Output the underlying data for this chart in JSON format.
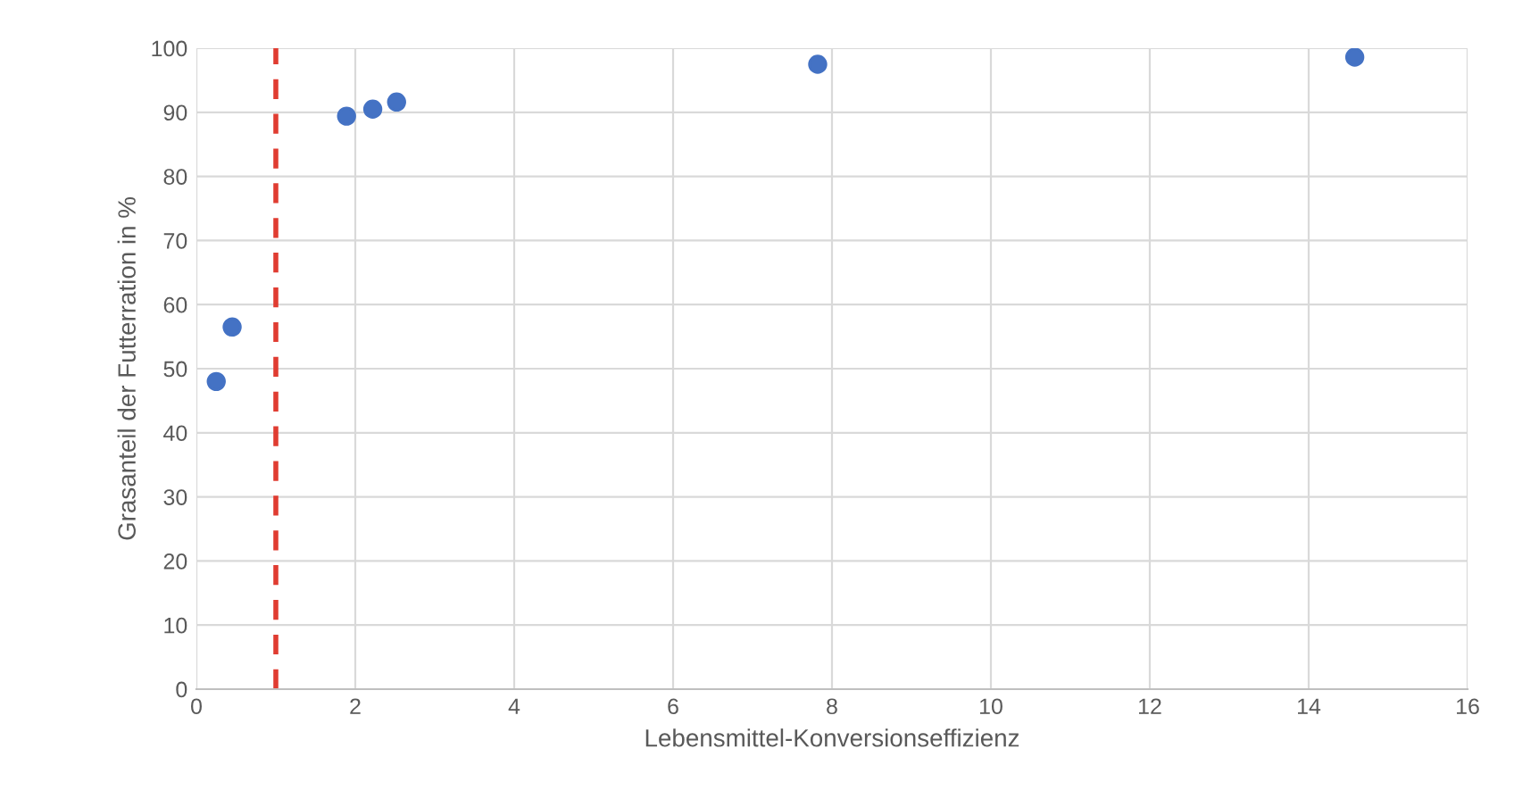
{
  "chart_data": {
    "type": "scatter",
    "xlabel": "Lebensmittel-Konversionseffizienz",
    "ylabel": "Grasanteil der Futterration in %",
    "x": [
      0.25,
      0.45,
      1.89,
      2.22,
      2.52,
      7.82,
      14.58
    ],
    "series": [
      {
        "color": "#4472c4",
        "values": [
          48,
          56.5,
          89.4,
          90.5,
          91.6,
          97.5,
          98.6
        ]
      }
    ],
    "xlim": [
      0,
      16
    ],
    "xticks": [
      0,
      2,
      4,
      6,
      8,
      10,
      12,
      14,
      16
    ],
    "ylim": [
      0,
      100
    ],
    "yticks": [
      0,
      10,
      20,
      30,
      40,
      50,
      60,
      70,
      80,
      90,
      100
    ],
    "grid": true,
    "marker": "circle",
    "ref_lines": [
      {
        "axis": "x",
        "value": 1,
        "color": "#e03c31",
        "line_style": "dashed"
      }
    ]
  }
}
